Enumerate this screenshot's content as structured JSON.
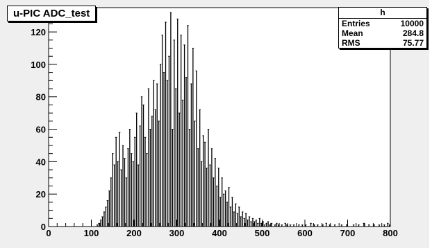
{
  "title": "u-PIC ADC_test",
  "stats": {
    "name": "h",
    "rows": [
      {
        "label": "Entries",
        "value": "10000"
      },
      {
        "label": "Mean",
        "value": "284.8"
      },
      {
        "label": "RMS",
        "value": "75.77"
      }
    ]
  },
  "chart_data": {
    "type": "bar",
    "title": "u-PIC ADC_test",
    "xlabel": "",
    "ylabel": "",
    "xlim": [
      0,
      800
    ],
    "ylim": [
      0,
      135
    ],
    "xticks": [
      0,
      100,
      200,
      300,
      400,
      500,
      600,
      700,
      800
    ],
    "yticks": [
      0,
      20,
      40,
      60,
      80,
      100,
      120
    ],
    "grid": false,
    "legend": "none",
    "colors": {
      "line": "#000000",
      "frame": "#000000"
    },
    "bin_width": 2,
    "x": [
      110,
      114,
      118,
      122,
      126,
      130,
      134,
      138,
      142,
      146,
      150,
      154,
      158,
      162,
      166,
      170,
      174,
      178,
      182,
      186,
      190,
      194,
      198,
      202,
      206,
      210,
      214,
      218,
      222,
      226,
      230,
      234,
      238,
      242,
      246,
      250,
      254,
      258,
      262,
      266,
      270,
      274,
      278,
      282,
      286,
      290,
      294,
      298,
      302,
      306,
      310,
      314,
      318,
      322,
      326,
      330,
      334,
      338,
      342,
      346,
      350,
      354,
      358,
      362,
      366,
      370,
      374,
      378,
      382,
      386,
      390,
      394,
      398,
      402,
      406,
      410,
      414,
      418,
      422,
      426,
      430,
      434,
      438,
      442,
      446,
      450,
      454,
      458,
      462,
      466,
      470,
      474,
      478,
      482,
      486,
      490,
      494,
      498,
      502,
      506,
      510,
      514,
      518,
      522,
      526,
      530,
      534,
      538,
      542,
      546,
      550,
      554,
      558,
      562,
      566,
      570,
      574,
      578,
      582,
      586,
      590,
      594,
      598,
      602,
      606,
      610,
      614,
      618,
      622,
      626,
      630,
      634,
      638,
      642,
      646,
      650,
      654,
      658,
      662,
      666,
      670,
      674,
      678,
      682,
      686,
      690,
      694,
      698,
      702,
      706,
      710,
      714,
      718,
      722,
      726,
      730,
      734,
      738,
      742,
      746,
      750,
      754,
      758,
      762,
      766,
      770,
      774,
      778,
      782,
      786,
      790,
      794,
      798
    ],
    "values": [
      0,
      1,
      2,
      4,
      6,
      9,
      12,
      16,
      22,
      30,
      45,
      38,
      55,
      40,
      58,
      35,
      50,
      42,
      30,
      48,
      60,
      45,
      40,
      55,
      70,
      38,
      62,
      80,
      75,
      55,
      45,
      85,
      60,
      68,
      90,
      72,
      88,
      65,
      100,
      118,
      95,
      126,
      90,
      105,
      132,
      60,
      115,
      85,
      128,
      70,
      118,
      78,
      112,
      92,
      124,
      60,
      88,
      110,
      65,
      96,
      48,
      72,
      40,
      56,
      52,
      36,
      60,
      38,
      48,
      30,
      42,
      25,
      36,
      18,
      30,
      20,
      22,
      15,
      24,
      12,
      18,
      9,
      14,
      8,
      12,
      6,
      9,
      5,
      8,
      4,
      6,
      3,
      5,
      3,
      4,
      2,
      5,
      2,
      3,
      1,
      2,
      3,
      1,
      2,
      0,
      1,
      2,
      1,
      0,
      1,
      0,
      2,
      1,
      0,
      1,
      0,
      1,
      0,
      0,
      1,
      0,
      1,
      0,
      1,
      0,
      0,
      2,
      0,
      1,
      0,
      1,
      0,
      0,
      1,
      0,
      2,
      0,
      1,
      0,
      0,
      1,
      0,
      0,
      0,
      1,
      0,
      0,
      1,
      0,
      0,
      0,
      1,
      0,
      0,
      1,
      0,
      0,
      2,
      0,
      0,
      1,
      0,
      0,
      1,
      0,
      0,
      1,
      0,
      0,
      1,
      0,
      2,
      1
    ]
  }
}
